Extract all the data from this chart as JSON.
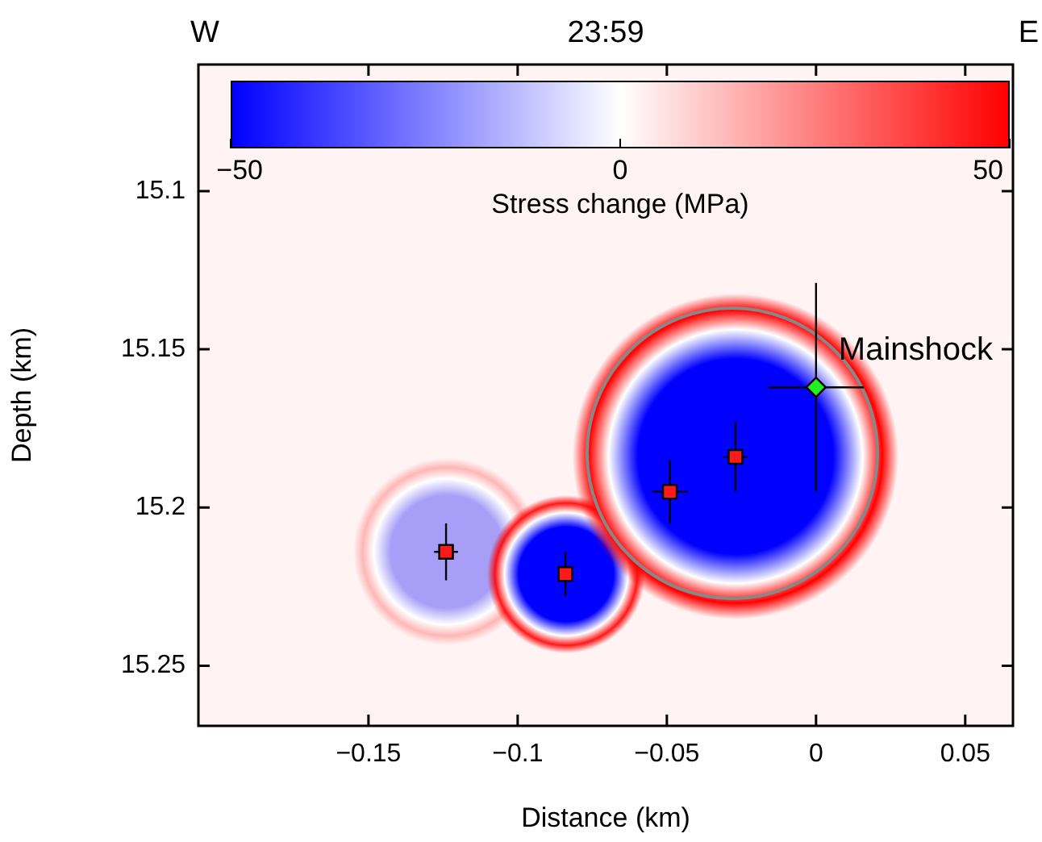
{
  "chart_data": {
    "type": "scatter",
    "title": "23:59",
    "xlabel": "Distance (km)",
    "ylabel": "Depth (km)",
    "clabel": "Stress change (MPa)",
    "xlim": [
      -0.207,
      0.066
    ],
    "xticks": [
      -0.15,
      -0.1,
      -0.05,
      0,
      0.05
    ],
    "ylim": [
      15.269,
      15.06
    ],
    "yticks": [
      15.1,
      15.15,
      15.2,
      15.25
    ],
    "grid": false,
    "legend": false,
    "annotations": [
      "W",
      "E",
      {
        "text": "Mainshock",
        "x": 0,
        "y": 15.162
      },
      "−50",
      "0",
      "50"
    ],
    "series": [
      {
        "color": "#ff1a1a",
        "marker": "square",
        "x": [
          -0.124,
          -0.084,
          -0.049,
          -0.027
        ],
        "values": [
          15.214,
          15.221,
          15.195,
          15.184
        ],
        "errors": [
          0.009,
          0.007,
          0.01,
          0.011
        ],
        "xerrors": [
          0.004,
          0.002,
          0.006,
          0.004
        ]
      },
      {
        "color": "#22ee22",
        "marker": "diamond",
        "x": [
          0
        ],
        "values": [
          15.162
        ],
        "errors": [
          0.033
        ],
        "xerrors": [
          0.016
        ]
      }
    ]
  }
}
